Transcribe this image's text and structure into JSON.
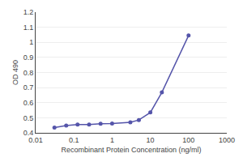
{
  "chart_data": {
    "type": "line",
    "x": [
      0.031,
      0.063,
      0.125,
      0.25,
      0.5,
      1.0,
      3.0,
      5.0,
      10.0,
      20.0,
      100.0
    ],
    "values": [
      0.435,
      0.448,
      0.455,
      0.455,
      0.46,
      0.462,
      0.47,
      0.485,
      0.535,
      0.668,
      1.045
    ],
    "color": "#5555aa",
    "marker": "circle",
    "xlabel": "Recombinant Protein Concentration (ng/ml)",
    "ylabel": "OD 490",
    "log": "x",
    "xlim": [
      0.01,
      1000
    ],
    "xticks": [
      0.01,
      0.1,
      1,
      10,
      100,
      1000
    ],
    "ylim": [
      0.4,
      1.2
    ],
    "yticks": [
      0.4,
      0.5,
      0.6,
      0.7,
      0.8,
      0.9,
      1,
      1.1,
      1.2
    ],
    "grid": true
  }
}
